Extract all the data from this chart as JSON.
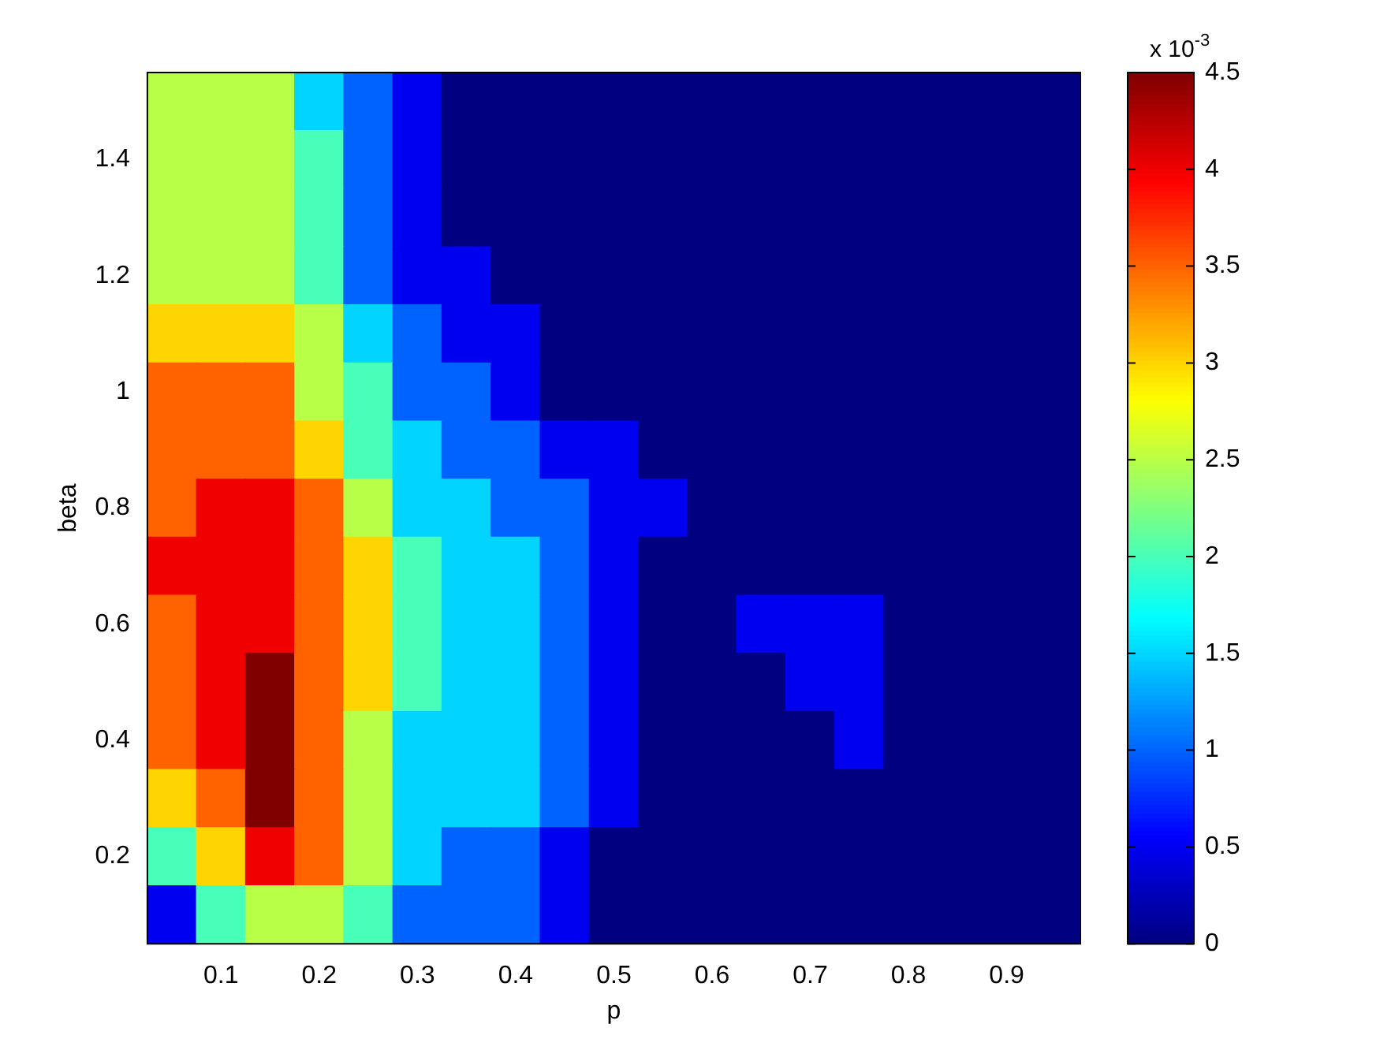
{
  "chart_data": {
    "type": "heatmap",
    "xlabel": "p",
    "ylabel": "beta",
    "clabel": "x 10$^{-3}$",
    "categories": [
      null,
      "0.1",
      null,
      "0.2",
      null,
      "0.3",
      null,
      "0.4",
      null,
      "0.5",
      null,
      "0.6",
      null,
      "0.7",
      null,
      "0.8",
      null,
      "0.9",
      null
    ],
    "y_categories": [
      null,
      "1.4",
      null,
      "1.2",
      null,
      "1",
      null,
      "0.8",
      null,
      "0.6",
      null,
      "0.4",
      null,
      "0.2",
      null
    ],
    "cells": [
      [
        2.5,
        2.5,
        2.5,
        1.5,
        1,
        0.5,
        0,
        0,
        0,
        0,
        0,
        0,
        0,
        0,
        0,
        0,
        0,
        0,
        0
      ],
      [
        2.5,
        2.5,
        2.5,
        2,
        1,
        0.5,
        0,
        0,
        0,
        0,
        0,
        0,
        0,
        0,
        0,
        0,
        0,
        0,
        0
      ],
      [
        2.5,
        2.5,
        2.5,
        2,
        1,
        0.5,
        0,
        0,
        0,
        0,
        0,
        0,
        0,
        0,
        0,
        0,
        0,
        0,
        0
      ],
      [
        2.5,
        2.5,
        2.5,
        2,
        1,
        0.5,
        0.5,
        0,
        0,
        0,
        0,
        0,
        0,
        0,
        0,
        0,
        0,
        0,
        0
      ],
      [
        3,
        3,
        3,
        2.5,
        1.5,
        1,
        0.5,
        0.5,
        0,
        0,
        0,
        0,
        0,
        0,
        0,
        0,
        0,
        0,
        0
      ],
      [
        3.5,
        3.5,
        3.5,
        2.5,
        2,
        1,
        1,
        0.5,
        0,
        0,
        0,
        0,
        0,
        0,
        0,
        0,
        0,
        0,
        0
      ],
      [
        3.5,
        3.5,
        3.5,
        3,
        2,
        1.5,
        1,
        1,
        0.5,
        0.5,
        0,
        0,
        0,
        0,
        0,
        0,
        0,
        0,
        0
      ],
      [
        3.5,
        4,
        4,
        3.5,
        2.5,
        1.5,
        1.5,
        1,
        1,
        0.5,
        0.5,
        0,
        0,
        0,
        0,
        0,
        0,
        0,
        0
      ],
      [
        4,
        4,
        4,
        3.5,
        3,
        2,
        1.5,
        1.5,
        1,
        0.5,
        0,
        0,
        0,
        0,
        0,
        0,
        0,
        0,
        0
      ],
      [
        3.5,
        4,
        4,
        3.5,
        3,
        2,
        1.5,
        1.5,
        1,
        0.5,
        0,
        0,
        0.5,
        0.5,
        0.5,
        0,
        0,
        0,
        0
      ],
      [
        3.5,
        4,
        4.5,
        3.5,
        3,
        2,
        1.5,
        1.5,
        1,
        0.5,
        0,
        0,
        0,
        0.5,
        0.5,
        0,
        0,
        0,
        0
      ],
      [
        3.5,
        4,
        4.5,
        3.5,
        2.5,
        1.5,
        1.5,
        1.5,
        1,
        0.5,
        0,
        0,
        0,
        0,
        0.5,
        0,
        0,
        0,
        0
      ],
      [
        3,
        3.5,
        4.5,
        3.5,
        2.5,
        1.5,
        1.5,
        1.5,
        1,
        0.5,
        0,
        0,
        0,
        0,
        0,
        0,
        0,
        0,
        0
      ],
      [
        2,
        3,
        4,
        3.5,
        2.5,
        1.5,
        1,
        1,
        0.5,
        0,
        0,
        0,
        0,
        0,
        0,
        0,
        0,
        0,
        0
      ],
      [
        0.5,
        2,
        2.5,
        2.5,
        2,
        1,
        1,
        1,
        0.5,
        0,
        0,
        0,
        0,
        0,
        0,
        0,
        0,
        0,
        0
      ]
    ],
    "clim": [
      0,
      4.5
    ],
    "cticks": [
      0,
      0.5,
      1,
      1.5,
      2,
      2.5,
      3,
      3.5,
      4,
      4.5
    ]
  }
}
